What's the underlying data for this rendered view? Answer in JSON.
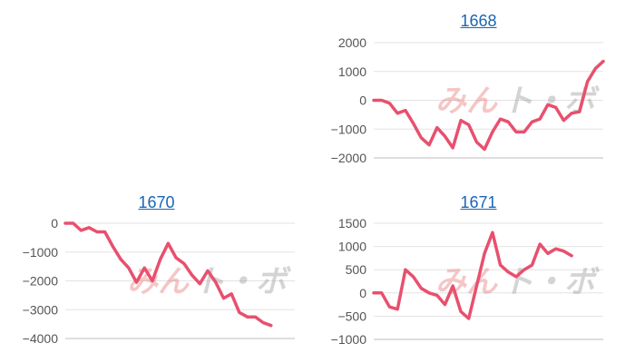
{
  "colors": {
    "series": "#e8506e",
    "title_link": "#1a66b5",
    "watermark_left": "#e87a7a",
    "watermark_right": "#9a9a9a"
  },
  "watermark": {
    "left_text": "みん",
    "right_text": "ト・ボ"
  },
  "chart_data": [
    {
      "type": "line",
      "title": "1668",
      "ylim": [
        -2000,
        2000
      ],
      "yticks": [
        2000,
        1000,
        0,
        -1000,
        -2000
      ],
      "ytick_labels": [
        "2000",
        "1000",
        "0",
        "−1000",
        "−2000"
      ],
      "grid": true,
      "series": [
        {
          "values": [
            0,
            0,
            -100,
            -450,
            -350,
            -800,
            -1300,
            -1550,
            -950,
            -1250,
            -1650,
            -700,
            -850,
            -1450,
            -1700,
            -1100,
            -650,
            -750,
            -1100,
            -1100,
            -750,
            -650,
            -150,
            -250,
            -700,
            -450,
            -400,
            650,
            1100,
            1350
          ]
        }
      ]
    },
    {
      "type": "line",
      "title": "1670",
      "ylim": [
        -4000,
        0
      ],
      "yticks": [
        0,
        -1000,
        -2000,
        -3000,
        -4000
      ],
      "ytick_labels": [
        "0",
        "−1000",
        "−2000",
        "−3000",
        "−4000"
      ],
      "grid": true,
      "series": [
        {
          "values": [
            0,
            0,
            -250,
            -150,
            -300,
            -300,
            -800,
            -1250,
            -1550,
            -2050,
            -1550,
            -2000,
            -1250,
            -700,
            -1200,
            -1400,
            -1800,
            -2100,
            -1650,
            -2050,
            -2600,
            -2450,
            -3100,
            -3250,
            -3250,
            -3450,
            -3550
          ]
        }
      ]
    },
    {
      "type": "line",
      "title": "1671",
      "ylim": [
        -1000,
        1500
      ],
      "yticks": [
        1500,
        1000,
        500,
        0,
        -500,
        -1000
      ],
      "ytick_labels": [
        "1500",
        "1000",
        "500",
        "0",
        "−500",
        "−1000"
      ],
      "grid": true,
      "series": [
        {
          "values": [
            0,
            0,
            -300,
            -350,
            500,
            350,
            100,
            0,
            -50,
            -250,
            150,
            -400,
            -550,
            150,
            850,
            1300,
            600,
            450,
            350,
            500,
            600,
            1050,
            850,
            950,
            900,
            800
          ]
        }
      ]
    }
  ]
}
